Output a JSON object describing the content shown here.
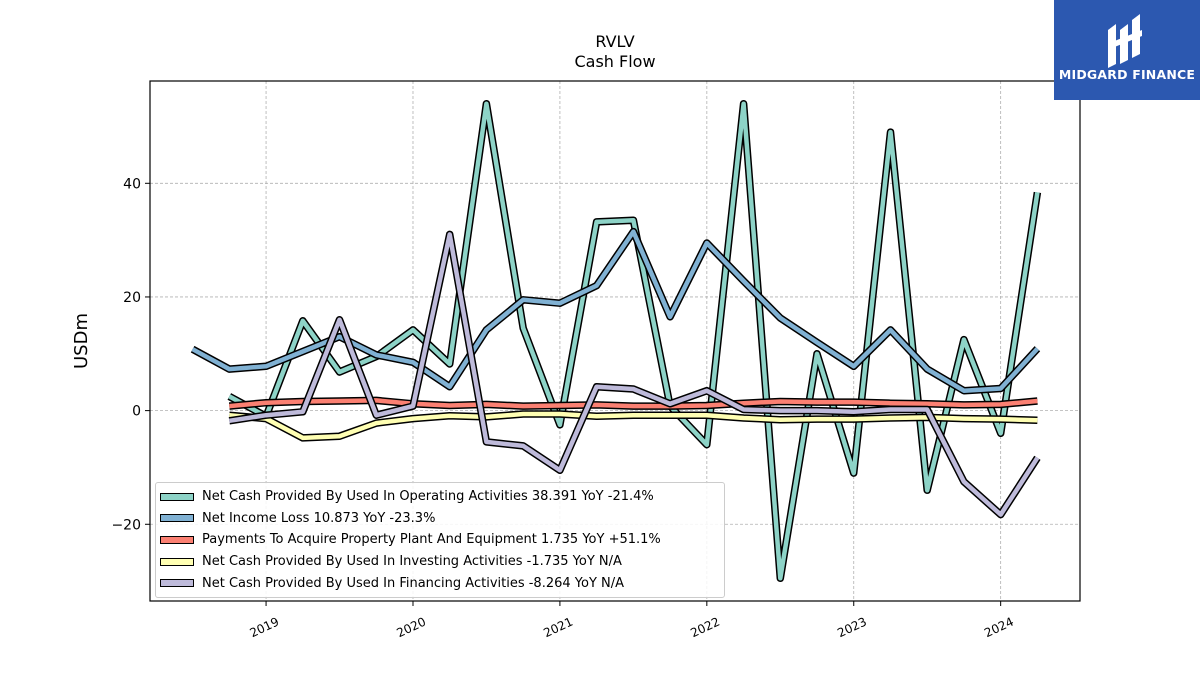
{
  "header": {
    "ticker": "RVLV",
    "subtitle": "Cash Flow"
  },
  "logo": {
    "text": "MIDGARD FINANCE",
    "color": "#2c58b0"
  },
  "chart_data": {
    "type": "line",
    "title": "RVLV",
    "subtitle": "Cash Flow",
    "ylabel": "USDm",
    "xlabel": "",
    "ylim": [
      -33.5,
      58
    ],
    "xlim": [
      2018.21,
      2024.54
    ],
    "yticks": [
      -20,
      0,
      20,
      40
    ],
    "ytick_labels": [
      "−20",
      "0",
      "20",
      "40"
    ],
    "xticks": [
      2019,
      2020,
      2021,
      2022,
      2023,
      2024
    ],
    "xtick_labels": [
      "2019",
      "2020",
      "2021",
      "2022",
      "2023",
      "2024"
    ],
    "grid": true,
    "legend_position": "lower-left",
    "series": [
      {
        "name": "Net Cash Provided By Used In Operating Activities",
        "legend": "Net Cash Provided By Used In Operating Activities  38.391 YoY -21.4%",
        "color": "#8dd3c7",
        "x": [
          2018.75,
          2019.0,
          2019.25,
          2019.5,
          2019.75,
          2020.0,
          2020.25,
          2020.5,
          2020.75,
          2021.0,
          2021.25,
          2021.5,
          2021.75,
          2022.0,
          2022.25,
          2022.5,
          2022.75,
          2023.0,
          2023.25,
          2023.5,
          2023.75,
          2024.0,
          2024.25
        ],
        "y": [
          2.5,
          -1.0,
          15.8,
          6.8,
          9.5,
          14.2,
          8.2,
          54.0,
          14.5,
          -2.5,
          33.2,
          33.5,
          0.8,
          -6.0,
          54.0,
          -29.5,
          10.0,
          -11.0,
          49.0,
          -14.0,
          12.5,
          -4.0,
          38.4
        ]
      },
      {
        "name": "Net Income Loss",
        "legend": "Net Income Loss  10.873 YoY -23.3%",
        "color": "#80b1d3",
        "x": [
          2018.5,
          2018.75,
          2019.0,
          2019.25,
          2019.5,
          2019.75,
          2020.0,
          2020.25,
          2020.5,
          2020.75,
          2021.0,
          2021.25,
          2021.5,
          2021.75,
          2022.0,
          2022.25,
          2022.5,
          2022.75,
          2023.0,
          2023.25,
          2023.5,
          2023.75,
          2024.0,
          2024.25
        ],
        "y": [
          10.8,
          7.3,
          7.8,
          10.4,
          13.0,
          9.8,
          8.5,
          4.2,
          14.2,
          19.5,
          18.9,
          22.0,
          31.5,
          16.5,
          29.5,
          22.8,
          16.3,
          12.0,
          7.8,
          14.2,
          7.3,
          3.5,
          3.9,
          10.9
        ]
      },
      {
        "name": "Payments To Acquire Property Plant And Equipment",
        "legend": "Payments To Acquire Property Plant And Equipment  1.735 YoY +51.1%",
        "color": "#fb8072",
        "x": [
          2018.75,
          2019.0,
          2019.25,
          2019.5,
          2019.75,
          2020.0,
          2020.25,
          2020.5,
          2020.75,
          2021.0,
          2021.25,
          2021.5,
          2021.75,
          2022.0,
          2022.25,
          2022.5,
          2022.75,
          2023.0,
          2023.25,
          2023.5,
          2023.75,
          2024.0,
          2024.25
        ],
        "y": [
          0.8,
          1.4,
          1.6,
          1.7,
          1.8,
          1.2,
          0.9,
          1.1,
          0.8,
          0.9,
          1.0,
          0.8,
          0.8,
          0.9,
          1.3,
          1.6,
          1.5,
          1.5,
          1.3,
          1.2,
          1.0,
          1.1,
          1.7
        ]
      },
      {
        "name": "Net Cash Provided By Used In Investing Activities",
        "legend": "Net Cash Provided By Used In Investing Activities  -1.735 YoY N/A",
        "color": "#ffffb3",
        "x": [
          2018.75,
          2019.0,
          2019.25,
          2019.5,
          2019.75,
          2020.0,
          2020.25,
          2020.5,
          2020.75,
          2021.0,
          2021.25,
          2021.5,
          2021.75,
          2022.0,
          2022.25,
          2022.5,
          2022.75,
          2023.0,
          2023.25,
          2023.5,
          2023.75,
          2024.0,
          2024.25
        ],
        "y": [
          -0.8,
          -1.4,
          -4.8,
          -4.5,
          -2.2,
          -1.4,
          -0.9,
          -1.1,
          -0.6,
          -0.6,
          -1.0,
          -0.8,
          -0.8,
          -0.8,
          -1.3,
          -1.6,
          -1.5,
          -1.5,
          -1.3,
          -1.2,
          -1.4,
          -1.5,
          -1.7
        ]
      },
      {
        "name": "Net Cash Provided By Used In Financing Activities",
        "legend": "Net Cash Provided By Used In Financing Activities  -8.264 YoY N/A",
        "color": "#bebada",
        "x": [
          2018.75,
          2019.0,
          2019.25,
          2019.5,
          2019.75,
          2020.0,
          2020.25,
          2020.5,
          2020.75,
          2021.0,
          2021.25,
          2021.5,
          2021.75,
          2022.0,
          2022.25,
          2022.5,
          2022.75,
          2023.0,
          2023.25,
          2023.5,
          2023.75,
          2024.0,
          2024.25
        ],
        "y": [
          -1.8,
          -0.8,
          -0.2,
          16.0,
          -0.8,
          0.8,
          31.0,
          -5.5,
          -6.2,
          -10.5,
          4.2,
          3.8,
          1.2,
          3.5,
          0.2,
          0.0,
          0.0,
          -0.2,
          0.2,
          0.2,
          -12.5,
          -18.3,
          -8.3
        ]
      }
    ]
  }
}
